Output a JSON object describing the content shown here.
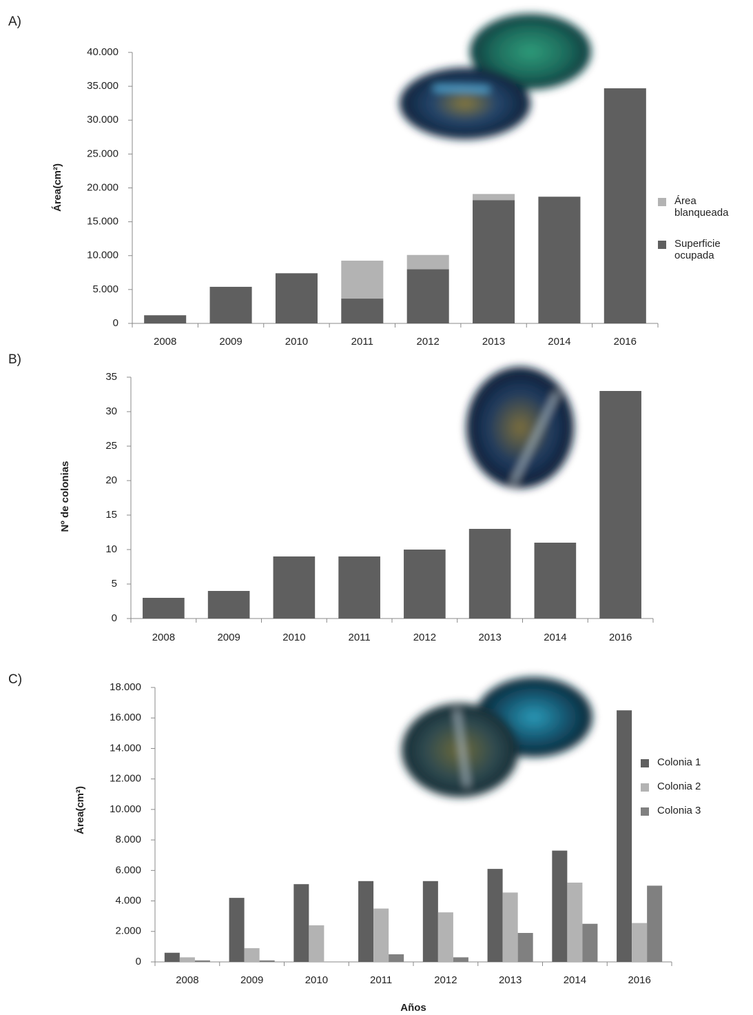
{
  "chart_data": [
    {
      "type": "bar",
      "label": "A)",
      "stacked": true,
      "y_label": "Área(cm²)",
      "categories": [
        "2008",
        "2009",
        "2010",
        "2011",
        "2012",
        "2013",
        "2014",
        "2016"
      ],
      "series": [
        {
          "name": "Superficie ocupada",
          "color": "#5f5f5f",
          "values": [
            1200,
            5400,
            7400,
            3660,
            8000,
            18200,
            18700,
            34700
          ]
        },
        {
          "name": "Área blanqueada",
          "color": "#b3b3b3",
          "values": [
            0,
            0,
            0,
            5600,
            2100,
            900,
            0,
            0
          ]
        }
      ],
      "ylim": [
        0,
        40000
      ],
      "yticks": [
        0,
        {
          "value": 5000,
          "label": "5.000"
        },
        {
          "value": 10000,
          "label": "10.000"
        },
        {
          "value": 15000,
          "label": "15.000"
        },
        {
          "value": 20000,
          "label": "20.000"
        },
        {
          "value": 25000,
          "label": "25.000"
        },
        {
          "value": 30000,
          "label": "30.000"
        },
        {
          "value": 35000,
          "label": "35.000"
        },
        {
          "value": 40000,
          "label": "40.000"
        }
      ],
      "grid": false
    },
    {
      "type": "bar",
      "label": "B)",
      "y_label": "Nº de colonias",
      "categories": [
        "2008",
        "2009",
        "2010",
        "2011",
        "2012",
        "2013",
        "2014",
        "2016"
      ],
      "values": [
        3,
        4,
        9,
        9,
        10,
        13,
        11,
        33
      ],
      "color": "#5f5f5f",
      "ylim": [
        0,
        35
      ],
      "yticks": [
        0,
        5,
        10,
        15,
        20,
        25,
        30,
        35
      ],
      "grid": false
    },
    {
      "type": "bar",
      "label": "C)",
      "stacked": false,
      "y_label": "Área(cm²)",
      "x_label": "Años",
      "categories": [
        "2008",
        "2009",
        "2010",
        "2011",
        "2012",
        "2013",
        "2014",
        "2016"
      ],
      "series": [
        {
          "name": "Colonia 1",
          "color": "#5f5f5f",
          "values": [
            600,
            4200,
            5100,
            5300,
            5300,
            6100,
            7300,
            16500
          ]
        },
        {
          "name": "Colonia 2",
          "color": "#b3b3b3",
          "values": [
            300,
            900,
            2400,
            3500,
            3250,
            4550,
            5200,
            2550
          ]
        },
        {
          "name": "Colonia 3",
          "color": "#808080",
          "values": [
            100,
            100,
            0,
            500,
            300,
            1900,
            2500,
            5000
          ]
        }
      ],
      "ylim": [
        0,
        18000
      ],
      "yticks": [
        0,
        {
          "value": 2000,
          "label": "2.000"
        },
        {
          "value": 4000,
          "label": "4.000"
        },
        {
          "value": 6000,
          "label": "6.000"
        },
        {
          "value": 8000,
          "label": "8.000"
        },
        {
          "value": 10000,
          "label": "10.000"
        },
        {
          "value": 12000,
          "label": "12.000"
        },
        {
          "value": 14000,
          "label": "14.000"
        },
        {
          "value": 16000,
          "label": "16.000"
        },
        {
          "value": 18000,
          "label": "18.000"
        }
      ],
      "grid": false
    }
  ]
}
